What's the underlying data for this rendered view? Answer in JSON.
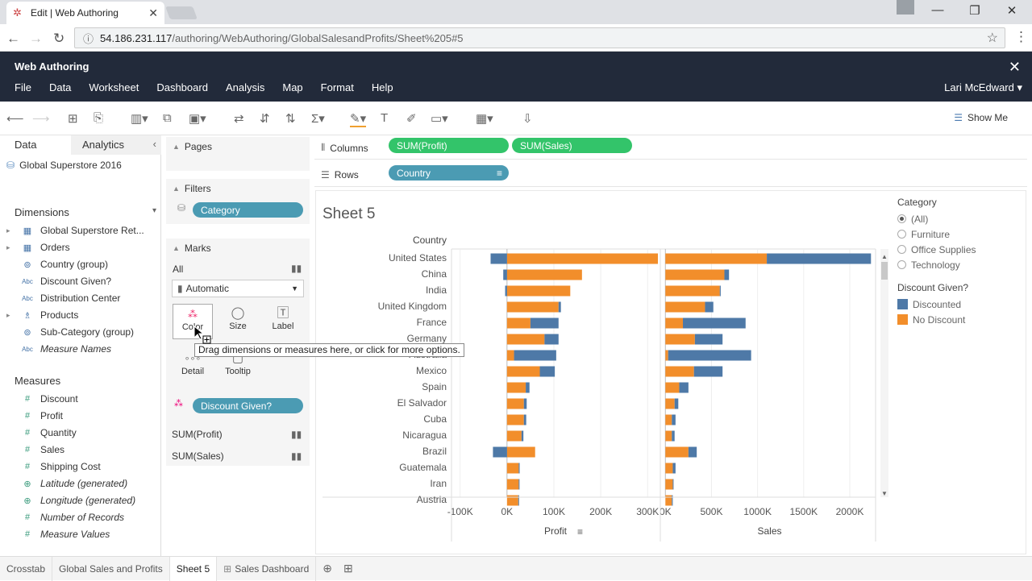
{
  "browser": {
    "tab_title": "Edit | Web Authoring",
    "url_host": "54.186.231.117",
    "url_path": "/authoring/WebAuthoring/GlobalSalesandProfits/Sheet%205#5"
  },
  "app": {
    "title": "Web Authoring",
    "menu": [
      "File",
      "Data",
      "Worksheet",
      "Dashboard",
      "Analysis",
      "Map",
      "Format",
      "Help"
    ],
    "user": "Lari McEdward",
    "show_me": "Show Me"
  },
  "left": {
    "tab_data": "Data",
    "tab_analytics": "Analytics",
    "datasource": "Global Superstore 2016",
    "dimensions_title": "Dimensions",
    "dimensions": [
      {
        "label": "Global Superstore Ret...",
        "icon": "table-icon",
        "expand": true,
        "italic": false
      },
      {
        "label": "Orders",
        "icon": "table-icon",
        "expand": true,
        "italic": false
      },
      {
        "label": "Country (group)",
        "icon": "group-icon",
        "expand": false,
        "italic": false
      },
      {
        "label": "Discount Given?",
        "icon": "abc-icon",
        "expand": false,
        "italic": false
      },
      {
        "label": "Distribution Center",
        "icon": "abc-icon",
        "expand": false,
        "italic": false
      },
      {
        "label": "Products",
        "icon": "hierarchy-icon",
        "expand": true,
        "italic": false
      },
      {
        "label": "Sub-Category (group)",
        "icon": "group-icon",
        "expand": false,
        "italic": false
      },
      {
        "label": "Measure Names",
        "icon": "abc-icon",
        "expand": false,
        "italic": true
      }
    ],
    "measures_title": "Measures",
    "measures": [
      {
        "label": "Discount",
        "icon": "number-icon",
        "italic": false
      },
      {
        "label": "Profit",
        "icon": "number-icon",
        "italic": false
      },
      {
        "label": "Quantity",
        "icon": "number-icon",
        "italic": false
      },
      {
        "label": "Sales",
        "icon": "number-icon",
        "italic": false
      },
      {
        "label": "Shipping Cost",
        "icon": "number-icon",
        "italic": false
      },
      {
        "label": "Latitude (generated)",
        "icon": "globe-icon",
        "italic": true
      },
      {
        "label": "Longitude (generated)",
        "icon": "globe-icon",
        "italic": true
      },
      {
        "label": "Number of Records",
        "icon": "number-icon",
        "italic": true
      },
      {
        "label": "Measure Values",
        "icon": "number-icon",
        "italic": true
      }
    ]
  },
  "cards": {
    "pages": "Pages",
    "filters": "Filters",
    "filter_pill": "Category",
    "marks": "Marks",
    "marks_all": "All",
    "mark_type": "Automatic",
    "buttons": [
      "Color",
      "Size",
      "Label",
      "Detail",
      "Tooltip"
    ],
    "color_pill": "Discount Given?",
    "sum_profit": "SUM(Profit)",
    "sum_sales": "SUM(Sales)"
  },
  "tooltip": "Drag dimensions or measures here, or click for more options.",
  "shelves": {
    "columns_label": "Columns",
    "rows_label": "Rows",
    "col_pills": [
      "SUM(Profit)",
      "SUM(Sales)"
    ],
    "row_pill": "Country"
  },
  "sheet": {
    "title": "Sheet 5",
    "country_header": "Country"
  },
  "legend": {
    "cat_title": "Category",
    "cat_items": [
      "(All)",
      "Furniture",
      "Office Supplies",
      "Technology"
    ],
    "disc_title": "Discount Given?",
    "disc_items": [
      {
        "label": "Discounted",
        "color": "#4e79a7"
      },
      {
        "label": "No Discount",
        "color": "#f28e2b"
      }
    ]
  },
  "bottom_tabs": [
    "Crosstab",
    "Global Sales and Profits",
    "Sheet 5",
    "Sales Dashboard"
  ],
  "chart_data": {
    "type": "bar",
    "countries": [
      "United States",
      "China",
      "India",
      "United Kingdom",
      "France",
      "Germany",
      "Australia",
      "Mexico",
      "Spain",
      "El Salvador",
      "Cuba",
      "Nicaragua",
      "Brazil",
      "Guatemala",
      "Iran",
      "Austria"
    ],
    "series": [
      {
        "name": "Profit",
        "xlabel": "Profit",
        "ticks": [
          "-100K",
          "0K",
          "100K",
          "200K",
          "300K"
        ],
        "xlim": [
          -115000,
          322000
        ],
        "discounted": [
          [
            -35000,
            0
          ],
          [
            -8000,
            0
          ],
          [
            -4000,
            0
          ],
          [
            110000,
            115000
          ],
          [
            50000,
            110000
          ],
          [
            80000,
            110000
          ],
          [
            15000,
            105000
          ],
          [
            70000,
            102000
          ],
          [
            40000,
            48000
          ],
          [
            36000,
            42000
          ],
          [
            36000,
            41000
          ],
          [
            31000,
            35000
          ],
          [
            -30000,
            0
          ],
          [
            25000,
            27000
          ],
          [
            25000,
            26000
          ],
          [
            24000,
            25000
          ]
        ],
        "no_discount": [
          [
            0,
            322000
          ],
          [
            0,
            160000
          ],
          [
            0,
            135000
          ],
          [
            0,
            110000
          ],
          [
            0,
            50000
          ],
          [
            0,
            80000
          ],
          [
            0,
            15000
          ],
          [
            0,
            70000
          ],
          [
            0,
            40000
          ],
          [
            0,
            36000
          ],
          [
            0,
            36000
          ],
          [
            0,
            31000
          ],
          [
            0,
            60000
          ],
          [
            0,
            25000
          ],
          [
            0,
            25000
          ],
          [
            0,
            24000
          ]
        ]
      },
      {
        "name": "Sales",
        "xlabel": "Sales",
        "ticks": [
          "0K",
          "500K",
          "1000K",
          "1500K",
          "2000K"
        ],
        "xlim": [
          -20000,
          2280000
        ],
        "discounted": [
          [
            1100000,
            2230000
          ],
          [
            640000,
            690000
          ],
          [
            590000,
            600000
          ],
          [
            430000,
            520000
          ],
          [
            190000,
            870000
          ],
          [
            320000,
            620000
          ],
          [
            30000,
            930000
          ],
          [
            310000,
            620000
          ],
          [
            150000,
            250000
          ],
          [
            100000,
            140000
          ],
          [
            70000,
            110000
          ],
          [
            70000,
            100000
          ],
          [
            250000,
            340000
          ],
          [
            80000,
            110000
          ],
          [
            80000,
            85000
          ],
          [
            70000,
            80000
          ]
        ],
        "no_discount": [
          [
            0,
            1100000
          ],
          [
            0,
            640000
          ],
          [
            0,
            590000
          ],
          [
            0,
            430000
          ],
          [
            0,
            190000
          ],
          [
            0,
            320000
          ],
          [
            0,
            30000
          ],
          [
            0,
            310000
          ],
          [
            0,
            150000
          ],
          [
            0,
            100000
          ],
          [
            0,
            70000
          ],
          [
            0,
            70000
          ],
          [
            0,
            250000
          ],
          [
            0,
            80000
          ],
          [
            0,
            80000
          ],
          [
            0,
            70000
          ]
        ]
      }
    ]
  }
}
